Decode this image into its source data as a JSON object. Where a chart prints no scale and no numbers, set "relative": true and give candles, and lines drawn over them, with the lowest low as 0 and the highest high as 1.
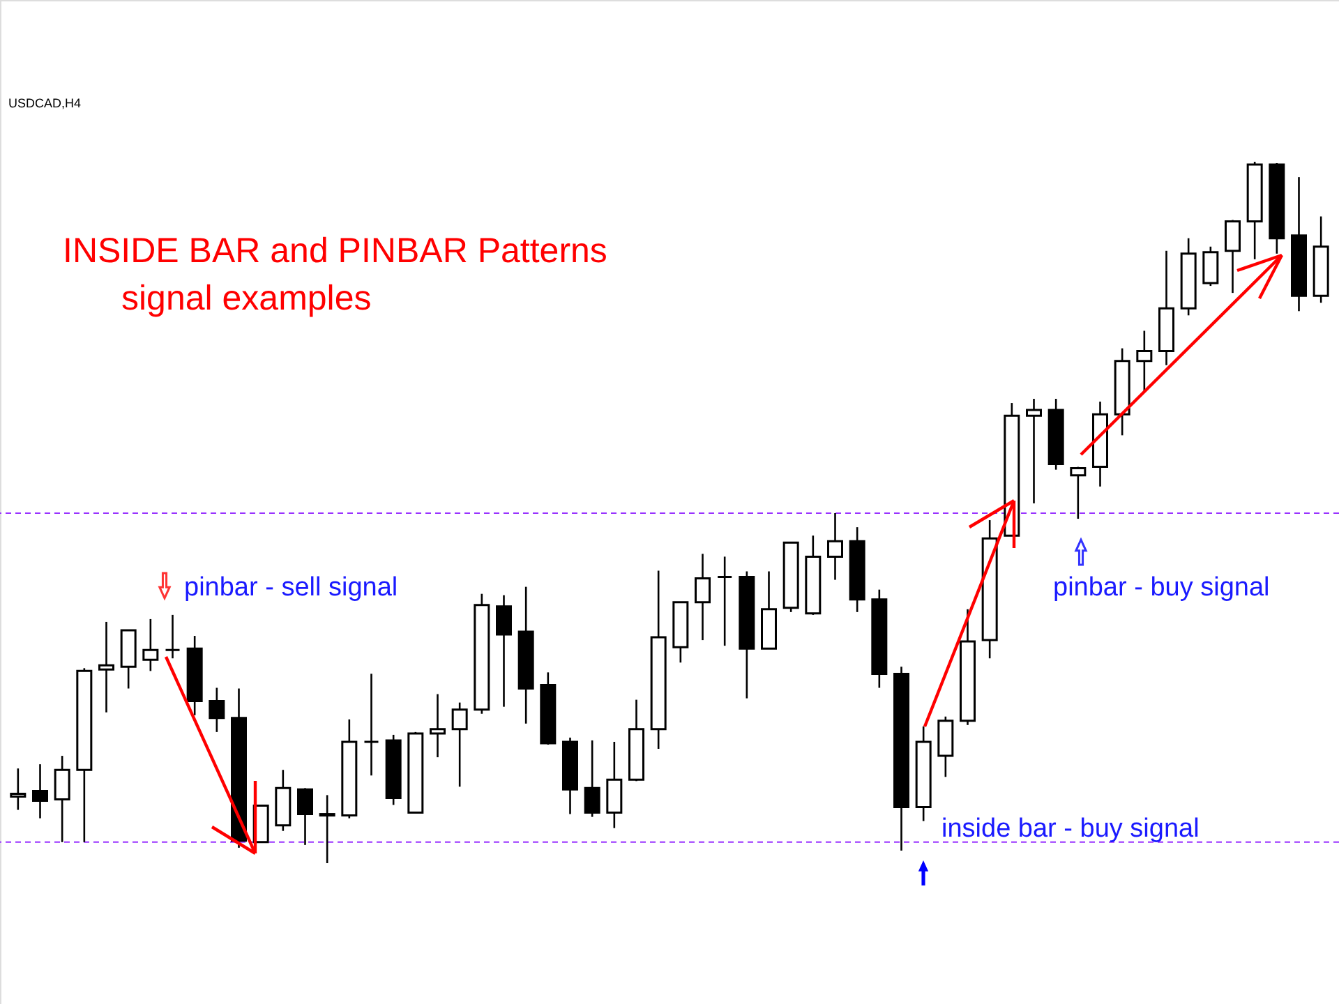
{
  "chart_data": {
    "type": "candlestick",
    "relative": true,
    "title": "INSIDE BAR and PINBAR Patterns\nsignal examples",
    "annotations": [
      "USDCAD,H4",
      "pinbar - sell signal",
      "inside bar - buy signal",
      "pinbar - buy signal"
    ],
    "categories": [
      null,
      null,
      null,
      null,
      null,
      null,
      null,
      null,
      null,
      null,
      null,
      null,
      null,
      null,
      null,
      null,
      null,
      null,
      null,
      null,
      null,
      null,
      null,
      null,
      null,
      null,
      null,
      null,
      null,
      null,
      null,
      null,
      null,
      null,
      null,
      null,
      null,
      null,
      null,
      null,
      null,
      null,
      null,
      null,
      null,
      null,
      null,
      null,
      null,
      null,
      null,
      null,
      null,
      null,
      null,
      null,
      null,
      null,
      null,
      null
    ],
    "ohlc": [
      [
        0.095,
        0.135,
        0.076,
        0.099
      ],
      [
        0.103,
        0.141,
        0.064,
        0.089
      ],
      [
        0.091,
        0.153,
        0.03,
        0.133
      ],
      [
        0.133,
        0.278,
        0.03,
        0.274
      ],
      [
        0.276,
        0.344,
        0.215,
        0.282
      ],
      [
        0.28,
        0.332,
        0.249,
        0.332
      ],
      [
        0.29,
        0.348,
        0.274,
        0.304
      ],
      [
        0.304,
        0.354,
        0.292,
        0.304
      ],
      [
        0.306,
        0.324,
        0.211,
        0.231
      ],
      [
        0.231,
        0.25,
        0.187,
        0.207
      ],
      [
        0.207,
        0.249,
        0.022,
        0.032
      ],
      [
        0.03,
        0.082,
        0.03,
        0.082
      ],
      [
        0.054,
        0.133,
        0.046,
        0.107
      ],
      [
        0.105,
        0.107,
        0.026,
        0.07
      ],
      [
        0.068,
        0.097,
        0,
        0.07
      ],
      [
        0.068,
        0.205,
        0.064,
        0.173
      ],
      [
        0.173,
        0.27,
        0.125,
        0.173
      ],
      [
        0.175,
        0.183,
        0.083,
        0.093
      ],
      [
        0.072,
        0.187,
        0.072,
        0.185
      ],
      [
        0.185,
        0.241,
        0.151,
        0.191
      ],
      [
        0.191,
        0.229,
        0.109,
        0.219
      ],
      [
        0.219,
        0.384,
        0.213,
        0.368
      ],
      [
        0.366,
        0.382,
        0.223,
        0.326
      ],
      [
        0.33,
        0.394,
        0.199,
        0.249
      ],
      [
        0.254,
        0.272,
        0.169,
        0.171
      ],
      [
        0.173,
        0.179,
        0.07,
        0.105
      ],
      [
        0.107,
        0.175,
        0.066,
        0.072
      ],
      [
        0.072,
        0.173,
        0.05,
        0.119
      ],
      [
        0.119,
        0.233,
        0.117,
        0.191
      ],
      [
        0.191,
        0.417,
        0.163,
        0.322
      ],
      [
        0.308,
        0.372,
        0.286,
        0.372
      ],
      [
        0.372,
        0.441,
        0.318,
        0.406
      ],
      [
        0.408,
        0.437,
        0.31,
        0.408
      ],
      [
        0.408,
        0.416,
        0.235,
        0.306
      ],
      [
        0.306,
        0.416,
        0.306,
        0.362
      ],
      [
        0.364,
        0.457,
        0.358,
        0.457
      ],
      [
        0.356,
        0.467,
        0.354,
        0.437
      ],
      [
        0.437,
        0.499,
        0.404,
        0.459
      ],
      [
        0.459,
        0.479,
        0.358,
        0.376
      ],
      [
        0.376,
        0.39,
        0.25,
        0.27
      ],
      [
        0.27,
        0.28,
        0.018,
        0.08
      ],
      [
        0.08,
        0.195,
        0.06,
        0.173
      ],
      [
        0.153,
        0.209,
        0.123,
        0.203
      ],
      [
        0.203,
        0.362,
        0.197,
        0.316
      ],
      [
        0.318,
        0.489,
        0.292,
        0.463
      ],
      [
        0.467,
        0.656,
        0.467,
        0.638
      ],
      [
        0.638,
        0.662,
        0.513,
        0.646
      ],
      [
        0.646,
        0.662,
        0.561,
        0.569
      ],
      [
        0.553,
        0.565,
        0.491,
        0.563
      ],
      [
        0.565,
        0.658,
        0.537,
        0.64
      ],
      [
        0.64,
        0.734,
        0.61,
        0.716
      ],
      [
        0.716,
        0.759,
        0.672,
        0.73
      ],
      [
        0.73,
        0.873,
        0.71,
        0.791
      ],
      [
        0.791,
        0.891,
        0.781,
        0.869
      ],
      [
        0.827,
        0.879,
        0.823,
        0.871
      ],
      [
        0.873,
        0.917,
        0.813,
        0.915
      ],
      [
        0.915,
        1.0,
        0.861,
        0.996
      ],
      [
        0.996,
        0.998,
        0.869,
        0.891
      ],
      [
        0.895,
        0.978,
        0.787,
        0.809
      ],
      [
        0.809,
        0.922,
        0.799,
        0.879
      ]
    ],
    "ref_lines": [
      {
        "axis": "y",
        "value": 0.03,
        "color": "#9933ff",
        "line_style": "dashed"
      },
      {
        "axis": "y",
        "value": 0.499,
        "color": "#9933ff",
        "line_style": "dashed"
      }
    ]
  }
}
